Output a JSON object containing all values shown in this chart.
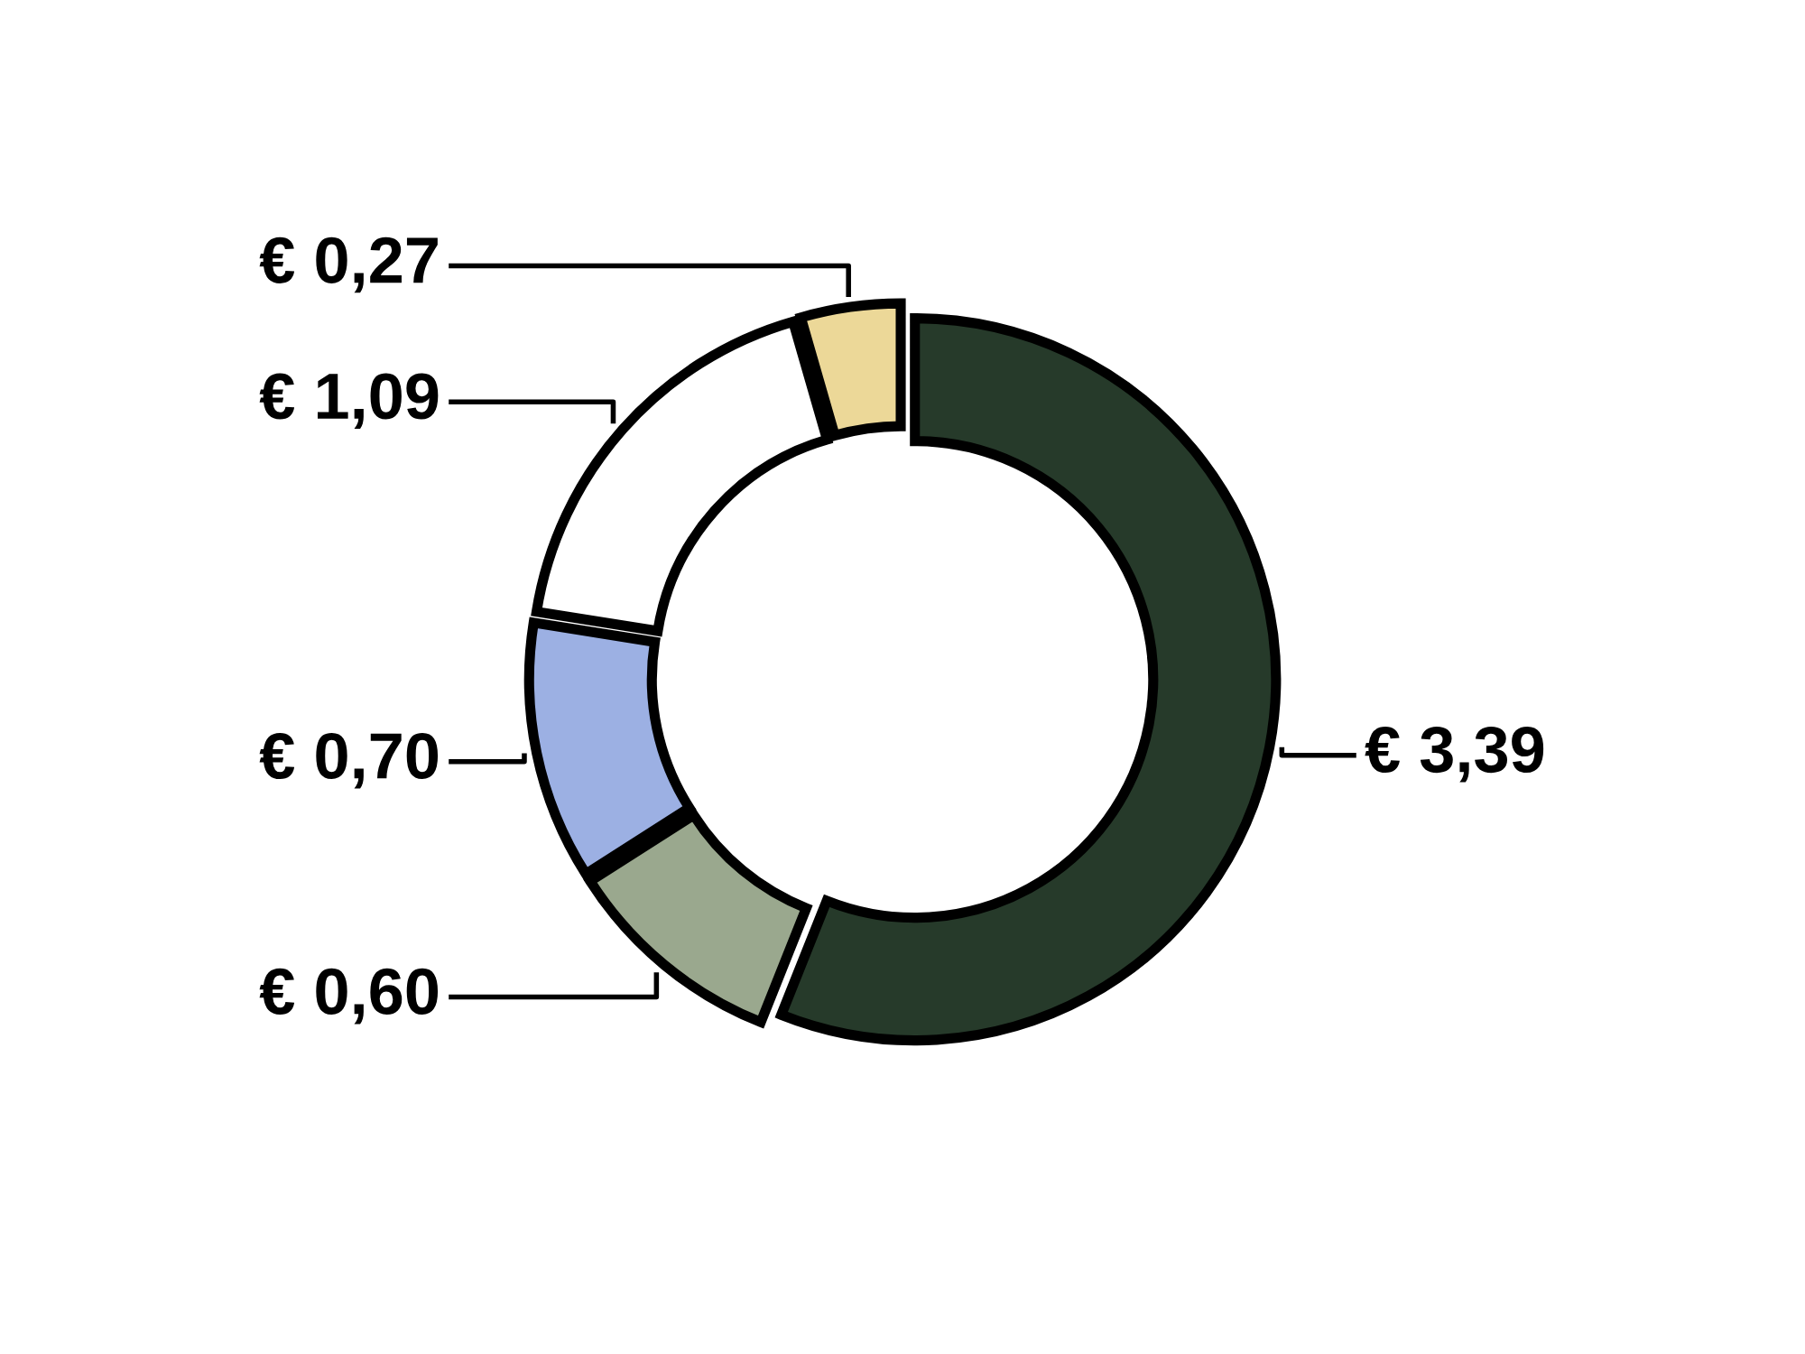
{
  "chart_data": {
    "type": "donut",
    "categories": [
      null,
      null,
      null,
      null,
      null
    ],
    "values": [
      3.39,
      0.6,
      0.7,
      1.09,
      0.27
    ],
    "colors": [
      "#263a2a",
      "#9aa88e",
      "#9cb0e3",
      "#ffffff",
      "#ecd898"
    ],
    "value_labels": [
      "€ 3,39",
      "€ 0,60",
      "€ 0,70",
      "€ 1,09",
      "€ 0,27"
    ],
    "legend": false
  }
}
